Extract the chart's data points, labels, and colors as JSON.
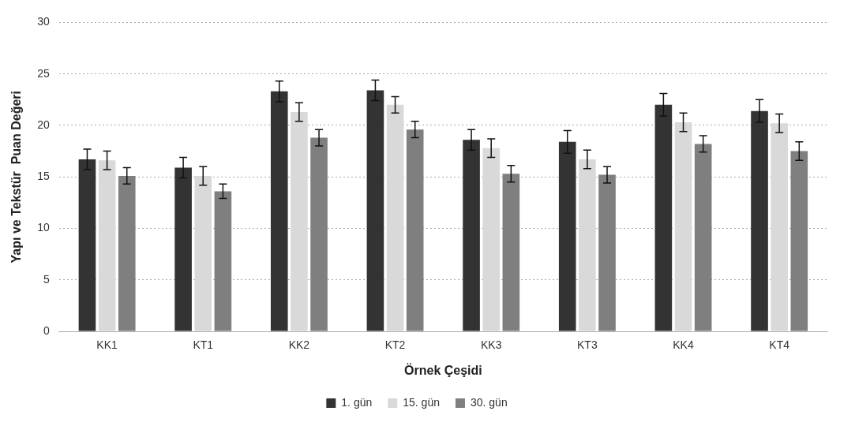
{
  "chart_data": {
    "type": "bar",
    "xlabel": "Örnek Çeşidi",
    "ylabel": "Yapı ve Tekstür  Puan Değeri",
    "categories": [
      "KK1",
      "KT1",
      "KK2",
      "KT2",
      "KK3",
      "KT3",
      "KK4",
      "KT4"
    ],
    "series": [
      {
        "name": "1. gün",
        "color": "#333333",
        "values": [
          16.7,
          15.9,
          23.3,
          23.4,
          18.6,
          18.4,
          22.0,
          21.4
        ],
        "errors": [
          1.0,
          1.0,
          1.0,
          1.0,
          1.0,
          1.1,
          1.1,
          1.1
        ]
      },
      {
        "name": "15. gün",
        "color": "#d9d9d9",
        "values": [
          16.6,
          15.1,
          21.3,
          22.0,
          17.8,
          16.7,
          20.3,
          20.2
        ],
        "errors": [
          0.9,
          0.9,
          0.9,
          0.8,
          0.9,
          0.9,
          0.9,
          0.9
        ]
      },
      {
        "name": "30. gün",
        "color": "#7f7f7f",
        "values": [
          15.1,
          13.6,
          18.8,
          19.6,
          15.3,
          15.2,
          18.2,
          17.5
        ],
        "errors": [
          0.8,
          0.7,
          0.8,
          0.8,
          0.8,
          0.8,
          0.8,
          0.9
        ]
      }
    ],
    "ylim": [
      0,
      30
    ],
    "yticks": [
      0,
      5,
      10,
      15,
      20,
      25,
      30
    ],
    "grid": "y",
    "legend": "bottom"
  }
}
